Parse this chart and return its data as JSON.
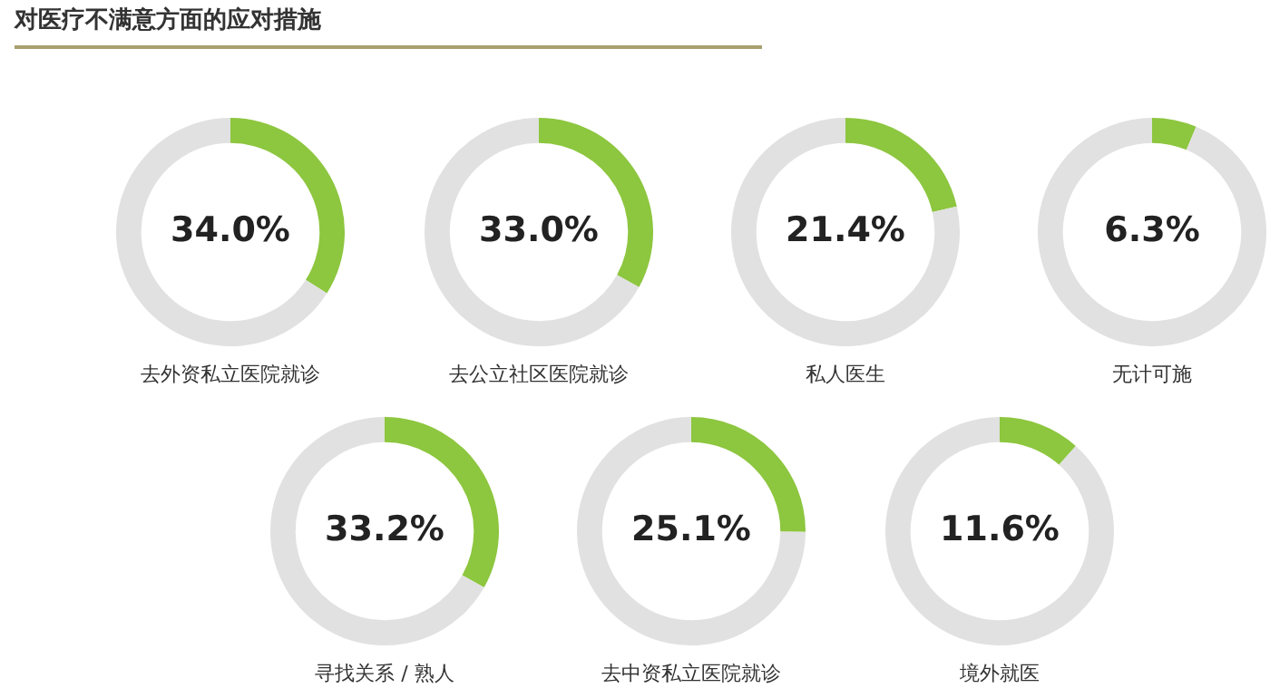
{
  "chart_data": [
    {
      "type": "other",
      "title": "对医疗不满意方面的应对措施"
    },
    {
      "type": "donut",
      "xlabel": "去外资私立医院就诊",
      "categories": [
        null,
        null
      ],
      "values": [
        34.0,
        66.0
      ],
      "colors": [
        "#8dc63f",
        "#e1e1e1"
      ],
      "value_labels": [
        "34.0%",
        null
      ]
    },
    {
      "type": "donut",
      "xlabel": "去公立社区医院就诊",
      "categories": [
        null,
        null
      ],
      "values": [
        33.0,
        67.0
      ],
      "colors": [
        "#8dc63f",
        "#e1e1e1"
      ],
      "value_labels": [
        "33.0%",
        null
      ]
    },
    {
      "type": "donut",
      "xlabel": "私人医生",
      "categories": [
        null,
        null
      ],
      "values": [
        21.4,
        78.6
      ],
      "colors": [
        "#8dc63f",
        "#e1e1e1"
      ],
      "value_labels": [
        "21.4%",
        null
      ]
    },
    {
      "type": "donut",
      "xlabel": "无计可施",
      "categories": [
        null,
        null
      ],
      "values": [
        6.3,
        93.7
      ],
      "colors": [
        "#8dc63f",
        "#e1e1e1"
      ],
      "value_labels": [
        "6.3%",
        null
      ]
    },
    {
      "type": "donut",
      "xlabel": "寻找关系 / 熟人",
      "categories": [
        null,
        null
      ],
      "values": [
        33.2,
        66.8
      ],
      "colors": [
        "#8dc63f",
        "#e1e1e1"
      ],
      "value_labels": [
        "33.2%",
        null
      ]
    },
    {
      "type": "donut",
      "xlabel": "去中资私立医院就诊",
      "categories": [
        null,
        null
      ],
      "values": [
        25.1,
        74.9
      ],
      "colors": [
        "#8dc63f",
        "#e1e1e1"
      ],
      "value_labels": [
        "25.1%",
        null
      ]
    },
    {
      "type": "donut",
      "xlabel": "境外就医",
      "categories": [
        null,
        null
      ],
      "values": [
        11.6,
        88.4
      ],
      "colors": [
        "#8dc63f",
        "#e1e1e1"
      ],
      "value_labels": [
        "11.6%",
        null
      ]
    }
  ]
}
